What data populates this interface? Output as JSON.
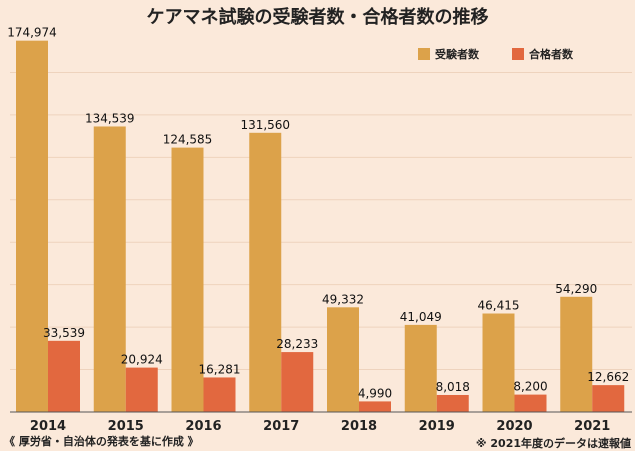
{
  "chart_data": {
    "type": "bar",
    "title": "ケアマネ試験の受験者数・合格者数の推移",
    "categories": [
      "2014",
      "2015",
      "2016",
      "2017",
      "2018",
      "2019",
      "2020",
      "2021"
    ],
    "series": [
      {
        "name": "受験者数",
        "values": [
          174974,
          134539,
          124585,
          131560,
          49332,
          41049,
          46415,
          54290
        ],
        "labels": [
          "174,974",
          "134,539",
          "124,585",
          "131,560",
          "49,332",
          "41,049",
          "46,415",
          "54,290"
        ],
        "color": "#dca24a"
      },
      {
        "name": "合格者数",
        "values": [
          33539,
          20924,
          16281,
          28233,
          4990,
          8018,
          8200,
          12662
        ],
        "labels": [
          "33,539",
          "20,924",
          "16,281",
          "28,233",
          "4,990",
          "8,018",
          "8,200",
          "12,662"
        ],
        "color": "#e2683f"
      }
    ],
    "ylim": [
      0,
      180000
    ],
    "grid": true,
    "legend_position": "top-right"
  },
  "source_note": "《 厚労省・自治体の発表を基に作成 》",
  "footnote": "※ 2021年度のデータは速報値"
}
